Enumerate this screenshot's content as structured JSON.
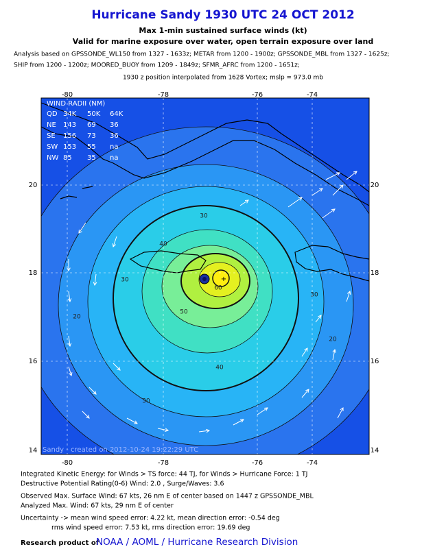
{
  "header": {
    "title": "Hurricane Sandy 1930 UTC 24 OCT 2012",
    "subtitle1": "Max 1-min sustained surface winds (kt)",
    "subtitle2": "Valid for marine exposure over water, open terrain exposure over land"
  },
  "analysis": [
    "Analysis based on GPSSONDE_WL150 from 1327 - 1633z; METAR from 1200 - 1900z; GPSSONDE_MBL from 1327 - 1625z;",
    "SHIP from 1200 - 1200z; MOORED_BUOY from 1209 - 1849z; SFMR_AFRC from 1200 - 1651z;",
    "1930 z position interpolated from 1628 Vortex; mslp = 973.0 mb"
  ],
  "map": {
    "lon_labels": [
      "-80",
      "-78",
      "-76",
      "-74"
    ],
    "lat_labels": [
      "20",
      "18",
      "16",
      "14"
    ],
    "wind_radii": {
      "title": "WIND RADII (NM)",
      "rows": [
        [
          "QD",
          "34K",
          "50K",
          "64K"
        ],
        [
          "NE",
          "143",
          "69",
          "36"
        ],
        [
          "SE",
          "156",
          "73",
          "36"
        ],
        [
          "SW",
          "153",
          "55",
          "na"
        ],
        [
          "NW",
          "85",
          "35",
          "na"
        ]
      ]
    },
    "contour_labels": [
      "30",
      "40",
      "50",
      "60",
      "30",
      "30",
      "20",
      "40",
      "30",
      "20"
    ],
    "credit": "Sandy - created on 2012-10-24 19:22:29 UTC"
  },
  "footer": {
    "lines": [
      "Integrated Kinetic Energy: for Winds > TS force: 44 TJ, for Winds > Hurricane Force: 1 TJ",
      "Destructive Potential Rating(0-6)  Wind: 2.0 , Surge/Waves: 3.6",
      "Observed Max. Surface Wind: 67 kts, 26 nm E of center based on 1447 z GPSSONDE_MBL",
      "Analyzed Max. Wind: 67 kts, 29 nm  E of center",
      "Uncertainty -> mean wind speed error: 4.22 kt, mean direction error:  -0.54 deg",
      "rms wind speed error: 7.53 kt, rms direction error: 19.69 deg"
    ],
    "research": {
      "label": "Research product of",
      "link": "NOAA / AOML / Hurricane Research Division"
    }
  }
}
